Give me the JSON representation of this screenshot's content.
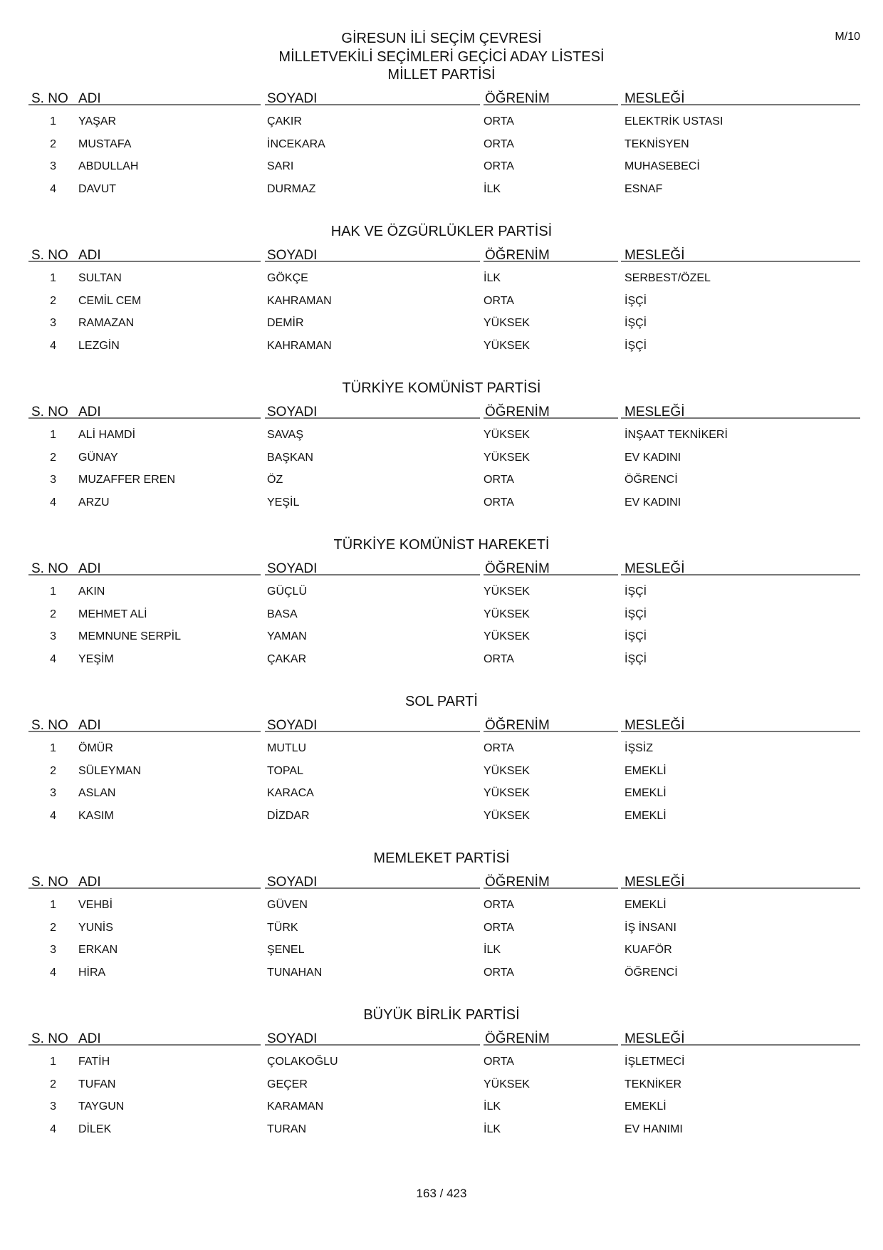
{
  "header": {
    "code": "M/10",
    "line1": "GİRESUN İLİ SEÇİM ÇEVRESİ",
    "line2": "MİLLETVEKİLİ SEÇİMLERİ GEÇİCİ ADAY LİSTESİ"
  },
  "columns": [
    "S. NO",
    "ADI",
    "SOYADI",
    "ÖĞRENİM",
    "MESLEĞİ"
  ],
  "parties": [
    {
      "name": "MİLLET PARTİSİ",
      "rows": [
        [
          "1",
          "YAŞAR",
          "ÇAKIR",
          "ORTA",
          "ELEKTRİK USTASI"
        ],
        [
          "2",
          "MUSTAFA",
          "İNCEKARA",
          "ORTA",
          "TEKNİSYEN"
        ],
        [
          "3",
          "ABDULLAH",
          "SARI",
          "ORTA",
          "MUHASEBECİ"
        ],
        [
          "4",
          "DAVUT",
          "DURMAZ",
          "İLK",
          "ESNAF"
        ]
      ]
    },
    {
      "name": "HAK VE ÖZGÜRLÜKLER PARTİSİ",
      "rows": [
        [
          "1",
          "SULTAN",
          "GÖKÇE",
          "İLK",
          "SERBEST/ÖZEL"
        ],
        [
          "2",
          "CEMİL CEM",
          "KAHRAMAN",
          "ORTA",
          "İŞÇİ"
        ],
        [
          "3",
          "RAMAZAN",
          "DEMİR",
          "YÜKSEK",
          "İŞÇİ"
        ],
        [
          "4",
          "LEZGİN",
          "KAHRAMAN",
          "YÜKSEK",
          "İŞÇİ"
        ]
      ]
    },
    {
      "name": "TÜRKİYE KOMÜNİST PARTİSİ",
      "rows": [
        [
          "1",
          "ALİ HAMDİ",
          "SAVAŞ",
          "YÜKSEK",
          "İNŞAAT TEKNİKERİ"
        ],
        [
          "2",
          "GÜNAY",
          "BAŞKAN",
          "YÜKSEK",
          "EV KADINI"
        ],
        [
          "3",
          "MUZAFFER EREN",
          "ÖZ",
          "ORTA",
          "ÖĞRENCİ"
        ],
        [
          "4",
          "ARZU",
          "YEŞİL",
          "ORTA",
          "EV KADINI"
        ]
      ]
    },
    {
      "name": "TÜRKİYE KOMÜNİST HAREKETİ",
      "rows": [
        [
          "1",
          "AKIN",
          "GÜÇLÜ",
          "YÜKSEK",
          "İŞÇİ"
        ],
        [
          "2",
          "MEHMET ALİ",
          "BASA",
          "YÜKSEK",
          "İŞÇİ"
        ],
        [
          "3",
          "MEMNUNE SERPİL",
          "YAMAN",
          "YÜKSEK",
          "İŞÇİ"
        ],
        [
          "4",
          "YEŞİM",
          "ÇAKAR",
          "ORTA",
          "İŞÇİ"
        ]
      ]
    },
    {
      "name": "SOL PARTİ",
      "rows": [
        [
          "1",
          "ÖMÜR",
          "MUTLU",
          "ORTA",
          "İŞSİZ"
        ],
        [
          "2",
          "SÜLEYMAN",
          "TOPAL",
          "YÜKSEK",
          "EMEKLİ"
        ],
        [
          "3",
          "ASLAN",
          "KARACA",
          "YÜKSEK",
          "EMEKLİ"
        ],
        [
          "4",
          "KASIM",
          "DİZDAR",
          "YÜKSEK",
          "EMEKLİ"
        ]
      ]
    },
    {
      "name": "MEMLEKET PARTİSİ",
      "rows": [
        [
          "1",
          "VEHBİ",
          "GÜVEN",
          "ORTA",
          "EMEKLİ"
        ],
        [
          "2",
          "YUNİS",
          "TÜRK",
          "ORTA",
          "İŞ İNSANI"
        ],
        [
          "3",
          "ERKAN",
          "ŞENEL",
          "İLK",
          "KUAFÖR"
        ],
        [
          "4",
          "HİRA",
          "TUNAHAN",
          "ORTA",
          "ÖĞRENCİ"
        ]
      ]
    },
    {
      "name": "BÜYÜK BİRLİK PARTİSİ",
      "rows": [
        [
          "1",
          "FATİH",
          "ÇOLAKOĞLU",
          "ORTA",
          "İŞLETMECİ"
        ],
        [
          "2",
          "TUFAN",
          "GEÇER",
          "YÜKSEK",
          "TEKNİKER"
        ],
        [
          "3",
          "TAYGUN",
          "KARAMAN",
          "İLK",
          "EMEKLİ"
        ],
        [
          "4",
          "DİLEK",
          "TURAN",
          "İLK",
          "EV HANIMI"
        ]
      ]
    }
  ],
  "footer": {
    "page": "163 / 423"
  }
}
